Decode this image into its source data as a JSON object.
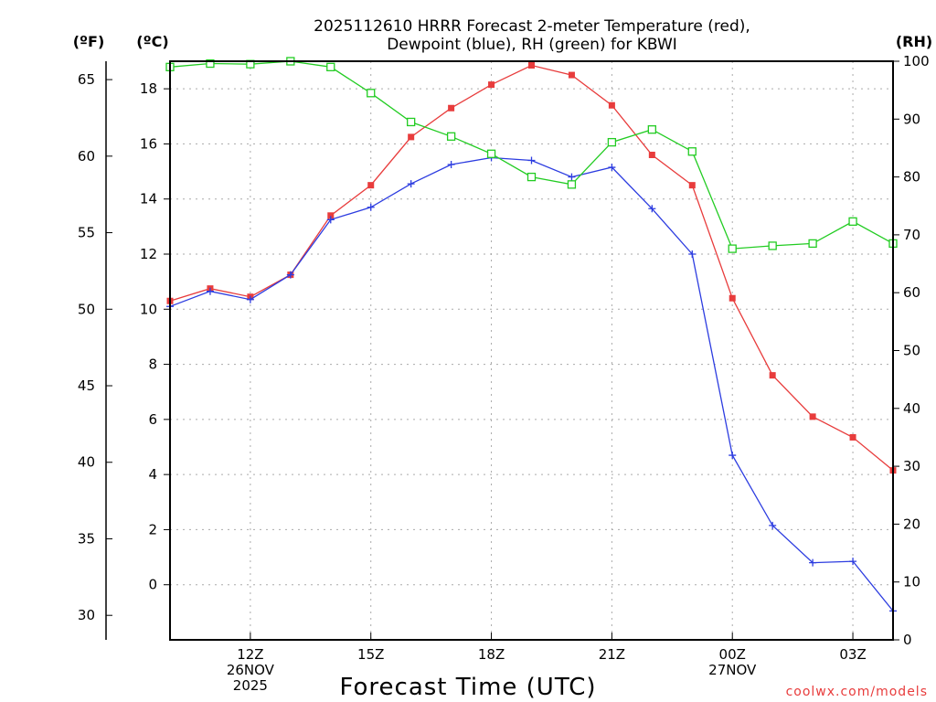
{
  "chart_data": {
    "type": "line",
    "title_line1": "2025112610 HRRR Forecast 2-meter Temperature (red),",
    "title_line2": "Dewpoint (blue), RH (green) for KBWI",
    "xlabel": "Forecast Time (UTC)",
    "credit": "coolwx.com/models",
    "units": {
      "fahrenheit": "(ºF)",
      "celsius": "(ºC)",
      "rh": "(RH)"
    },
    "x_hours": [
      10,
      11,
      12,
      13,
      14,
      15,
      16,
      17,
      18,
      19,
      20,
      21,
      22,
      23,
      24,
      25,
      26,
      27,
      28
    ],
    "xlim": [
      10,
      28
    ],
    "x_ticks": [
      {
        "hour": 12,
        "lines": [
          "12Z",
          "26NOV",
          "2025"
        ]
      },
      {
        "hour": 15,
        "lines": [
          "15Z"
        ]
      },
      {
        "hour": 18,
        "lines": [
          "18Z"
        ]
      },
      {
        "hour": 21,
        "lines": [
          "21Z"
        ]
      },
      {
        "hour": 24,
        "lines": [
          "00Z",
          "27NOV"
        ]
      },
      {
        "hour": 27,
        "lines": [
          "03Z"
        ]
      }
    ],
    "celsius_axis": {
      "range": [
        -2,
        19
      ],
      "ticks": [
        0,
        2,
        4,
        6,
        8,
        10,
        12,
        14,
        16,
        18
      ]
    },
    "fahrenheit_axis": {
      "ticks": [
        30,
        35,
        40,
        45,
        50,
        55,
        60,
        65
      ]
    },
    "rh_axis": {
      "range": [
        0,
        100
      ],
      "ticks": [
        0,
        10,
        20,
        30,
        40,
        50,
        60,
        70,
        80,
        90,
        100
      ]
    },
    "series": [
      {
        "name": "Temperature",
        "unit": "C",
        "color": "#e83c3c",
        "marker": "filled-square",
        "values": [
          10.3,
          10.75,
          10.45,
          11.25,
          13.4,
          14.5,
          16.25,
          17.3,
          18.15,
          18.85,
          18.5,
          17.4,
          15.6,
          14.5,
          10.4,
          7.6,
          6.1,
          5.35,
          4.15
        ]
      },
      {
        "name": "Dewpoint",
        "unit": "C",
        "color": "#2c3ce0",
        "marker": "plus",
        "values": [
          10.1,
          10.65,
          10.35,
          11.25,
          13.25,
          13.7,
          14.55,
          15.25,
          15.5,
          15.4,
          14.8,
          15.15,
          13.65,
          12.0,
          4.7,
          2.15,
          0.8,
          0.85,
          -0.95
        ]
      },
      {
        "name": "RH",
        "unit": "%",
        "color": "#22cc22",
        "marker": "open-square",
        "values": [
          99,
          99.6,
          99.5,
          100,
          99,
          94.5,
          89.5,
          87,
          84,
          80,
          78.7,
          86,
          88.2,
          84.4,
          67.6,
          68.1,
          68.5,
          72.3,
          68.5
        ]
      }
    ]
  }
}
